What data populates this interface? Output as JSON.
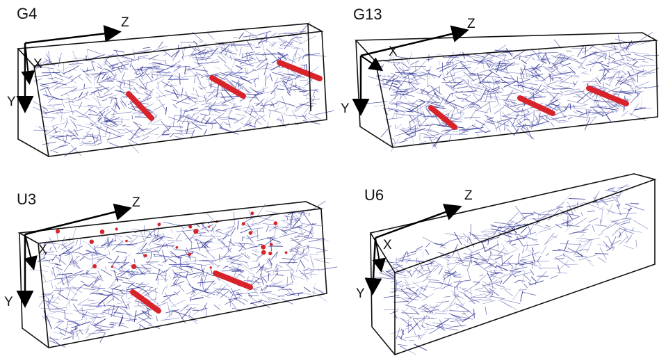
{
  "colors": {
    "fiber": "#2a2f8f",
    "fiber_light": "#5a5fb6",
    "inclusion": "#d8232a",
    "box_edge": "#111111",
    "axis": "#000000"
  },
  "panels": [
    {
      "label": "G4",
      "axes": {
        "x": "X",
        "y": "Y",
        "z": "Z"
      },
      "fiber_density": "high",
      "red_rods": 3
    },
    {
      "label": "G13",
      "axes": {
        "x": "X",
        "y": "Y",
        "z": "Z"
      },
      "fiber_density": "high",
      "red_rods": 3
    },
    {
      "label": "U3",
      "axes": {
        "x": "X",
        "y": "Y",
        "z": "Z"
      },
      "fiber_density": "high",
      "red_rods": 2
    },
    {
      "label": "U6",
      "axes": {
        "x": "X",
        "y": "Y",
        "z": "Z"
      },
      "fiber_density": "medium",
      "red_rods": 0
    }
  ]
}
